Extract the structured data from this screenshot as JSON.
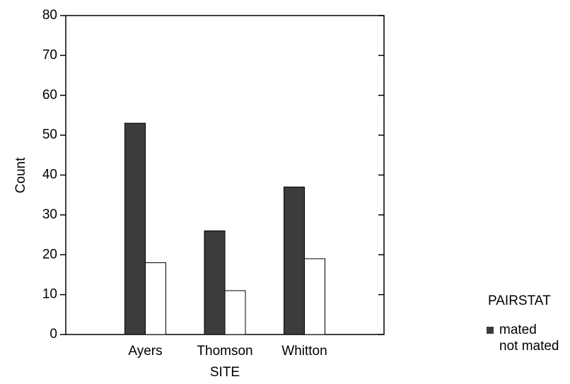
{
  "chart_data": {
    "type": "bar",
    "x_label": "SITE",
    "y_label": "Count",
    "categories": [
      "Ayers",
      "Thomson",
      "Whitton"
    ],
    "series": [
      {
        "name": "mated",
        "color": "#3c3c3c",
        "values": [
          53,
          26,
          37
        ]
      },
      {
        "name": "not mated",
        "color": "#ffffff",
        "values": [
          18,
          11,
          19
        ]
      }
    ],
    "ylim": [
      0,
      80
    ],
    "yticks": [
      0,
      10,
      20,
      30,
      40,
      50,
      60,
      70,
      80
    ],
    "legend_title": "PAIRSTAT",
    "legend": "right"
  }
}
